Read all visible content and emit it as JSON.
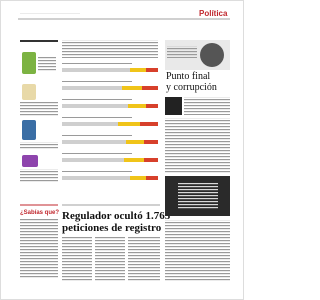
{
  "header": {
    "section": "Política"
  },
  "article": {
    "headline_line1": "Regulador ocultó 1.765",
    "headline_line2": "peticiones de registro"
  },
  "column": {
    "headline_line1": "Punto final",
    "headline_line2": "y corrupción"
  },
  "sidebar": {
    "box_title": "¿Sabías que?"
  }
}
